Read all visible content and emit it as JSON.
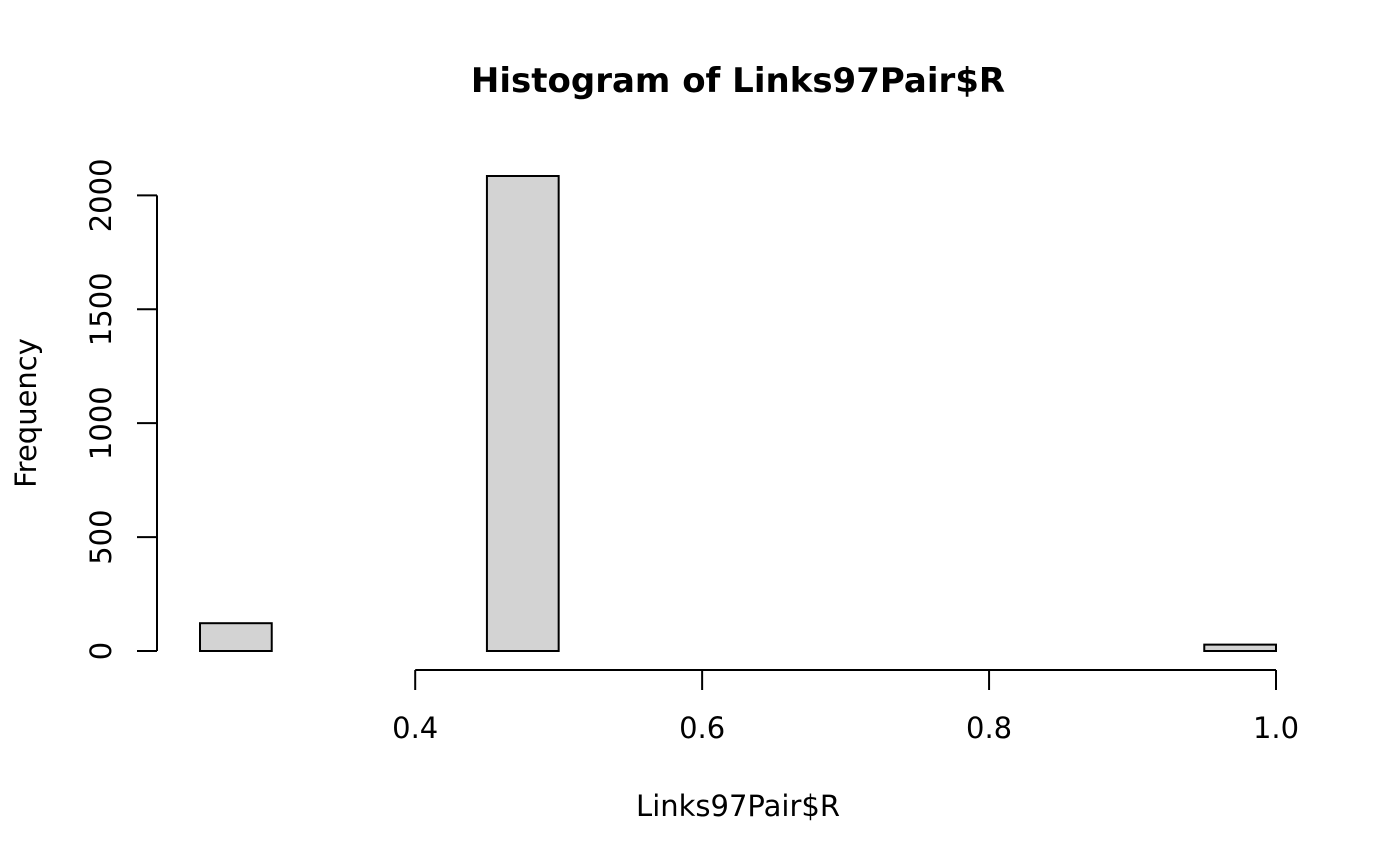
{
  "chart_data": {
    "type": "bar",
    "title": "Histogram of Links97Pair$R",
    "xlabel": "Links97Pair$R",
    "ylabel": "Frequency",
    "bin_edges": [
      0.25,
      0.3,
      0.35,
      0.4,
      0.45,
      0.5,
      0.55,
      0.6,
      0.65,
      0.7,
      0.75,
      0.8,
      0.85,
      0.9,
      0.95,
      1.0
    ],
    "counts": [
      122,
      0,
      0,
      0,
      2085,
      0,
      0,
      0,
      0,
      0,
      0,
      0,
      0,
      0,
      28
    ],
    "x_ticks": [
      0.4,
      0.6,
      0.8,
      1.0
    ],
    "x_tick_labels": [
      "0.4",
      "0.6",
      "0.8",
      "1.0"
    ],
    "y_ticks": [
      0,
      500,
      1000,
      1500,
      2000
    ],
    "y_tick_labels": [
      "0",
      "500",
      "1000",
      "1500",
      "2000"
    ],
    "xlim": [
      0.25,
      1.0
    ],
    "ylim": [
      0,
      2085
    ],
    "grid": false,
    "colors": {
      "bar_fill": "#d3d3d3",
      "bar_stroke": "#000000"
    }
  }
}
